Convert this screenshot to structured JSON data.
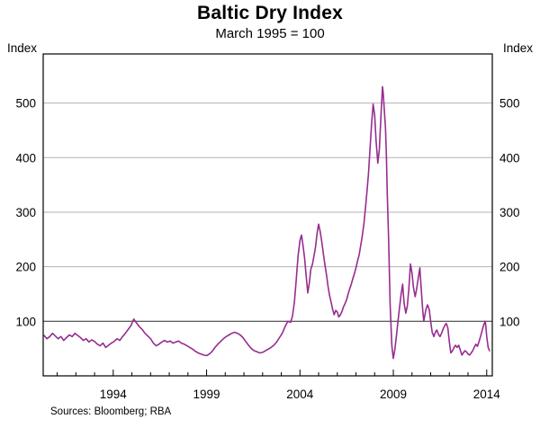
{
  "header": {
    "title": "Baltic Dry Index",
    "subtitle": "March 1995 = 100"
  },
  "axes": {
    "left_unit": "Index",
    "right_unit": "Index"
  },
  "footer": {
    "source": "Sources: Bloomberg; RBA"
  },
  "chart_data": {
    "type": "line",
    "title": "Baltic Dry Index",
    "subtitle": "March 1995 = 100",
    "ylabel": "Index",
    "xlabel": "",
    "xlim": [
      1990.25,
      2014.3
    ],
    "ylim": [
      0,
      590
    ],
    "yticks": [
      100,
      200,
      300,
      400,
      500
    ],
    "xticks": [
      1994,
      1999,
      2004,
      2009,
      2014
    ],
    "baseline": 100,
    "grid": true,
    "legend": "none",
    "line_color": "#962d8f",
    "grid_color": "#b3b3b3",
    "baseline_color": "#4d4d4d",
    "frame_color": "#000000",
    "series": [
      {
        "name": "Baltic Dry Index",
        "points": [
          [
            1990.3,
            74
          ],
          [
            1990.45,
            68
          ],
          [
            1990.6,
            72
          ],
          [
            1990.75,
            78
          ],
          [
            1990.9,
            73
          ],
          [
            1991.05,
            68
          ],
          [
            1991.2,
            72
          ],
          [
            1991.35,
            65
          ],
          [
            1991.5,
            70
          ],
          [
            1991.65,
            75
          ],
          [
            1991.8,
            72
          ],
          [
            1991.95,
            78
          ],
          [
            1992.1,
            74
          ],
          [
            1992.25,
            70
          ],
          [
            1992.4,
            65
          ],
          [
            1992.55,
            68
          ],
          [
            1992.7,
            62
          ],
          [
            1992.85,
            66
          ],
          [
            1993.0,
            63
          ],
          [
            1993.15,
            58
          ],
          [
            1993.3,
            55
          ],
          [
            1993.45,
            60
          ],
          [
            1993.6,
            52
          ],
          [
            1993.75,
            56
          ],
          [
            1993.9,
            60
          ],
          [
            1994.05,
            63
          ],
          [
            1994.2,
            68
          ],
          [
            1994.35,
            65
          ],
          [
            1994.5,
            72
          ],
          [
            1994.65,
            78
          ],
          [
            1994.8,
            85
          ],
          [
            1994.95,
            92
          ],
          [
            1995.1,
            104
          ],
          [
            1995.25,
            97
          ],
          [
            1995.4,
            90
          ],
          [
            1995.55,
            85
          ],
          [
            1995.7,
            78
          ],
          [
            1995.85,
            73
          ],
          [
            1996.0,
            68
          ],
          [
            1996.15,
            60
          ],
          [
            1996.3,
            55
          ],
          [
            1996.45,
            58
          ],
          [
            1996.6,
            62
          ],
          [
            1996.75,
            65
          ],
          [
            1996.9,
            62
          ],
          [
            1997.05,
            64
          ],
          [
            1997.2,
            60
          ],
          [
            1997.35,
            62
          ],
          [
            1997.5,
            64
          ],
          [
            1997.65,
            60
          ],
          [
            1997.8,
            58
          ],
          [
            1997.95,
            55
          ],
          [
            1998.1,
            52
          ],
          [
            1998.25,
            49
          ],
          [
            1998.4,
            45
          ],
          [
            1998.55,
            42
          ],
          [
            1998.7,
            40
          ],
          [
            1998.85,
            38
          ],
          [
            1999.0,
            37
          ],
          [
            1999.15,
            40
          ],
          [
            1999.3,
            45
          ],
          [
            1999.45,
            52
          ],
          [
            1999.6,
            58
          ],
          [
            1999.75,
            63
          ],
          [
            1999.9,
            68
          ],
          [
            2000.05,
            72
          ],
          [
            2000.2,
            75
          ],
          [
            2000.35,
            78
          ],
          [
            2000.5,
            80
          ],
          [
            2000.65,
            78
          ],
          [
            2000.8,
            75
          ],
          [
            2000.95,
            70
          ],
          [
            2001.1,
            63
          ],
          [
            2001.25,
            56
          ],
          [
            2001.4,
            50
          ],
          [
            2001.55,
            46
          ],
          [
            2001.7,
            44
          ],
          [
            2001.85,
            42
          ],
          [
            2002.0,
            43
          ],
          [
            2002.15,
            46
          ],
          [
            2002.3,
            49
          ],
          [
            2002.45,
            52
          ],
          [
            2002.6,
            56
          ],
          [
            2002.75,
            62
          ],
          [
            2002.9,
            70
          ],
          [
            2003.05,
            78
          ],
          [
            2003.2,
            90
          ],
          [
            2003.35,
            100
          ],
          [
            2003.5,
            98
          ],
          [
            2003.6,
            110
          ],
          [
            2003.7,
            135
          ],
          [
            2003.8,
            175
          ],
          [
            2003.9,
            220
          ],
          [
            2004.0,
            248
          ],
          [
            2004.08,
            258
          ],
          [
            2004.16,
            240
          ],
          [
            2004.25,
            215
          ],
          [
            2004.33,
            185
          ],
          [
            2004.42,
            152
          ],
          [
            2004.5,
            170
          ],
          [
            2004.58,
            195
          ],
          [
            2004.67,
            205
          ],
          [
            2004.75,
            220
          ],
          [
            2004.83,
            235
          ],
          [
            2004.92,
            262
          ],
          [
            2005.0,
            278
          ],
          [
            2005.08,
            265
          ],
          [
            2005.17,
            245
          ],
          [
            2005.25,
            225
          ],
          [
            2005.33,
            205
          ],
          [
            2005.42,
            185
          ],
          [
            2005.5,
            165
          ],
          [
            2005.58,
            148
          ],
          [
            2005.67,
            135
          ],
          [
            2005.75,
            122
          ],
          [
            2005.83,
            112
          ],
          [
            2005.92,
            120
          ],
          [
            2006.0,
            117
          ],
          [
            2006.08,
            108
          ],
          [
            2006.17,
            112
          ],
          [
            2006.25,
            118
          ],
          [
            2006.33,
            126
          ],
          [
            2006.42,
            133
          ],
          [
            2006.5,
            140
          ],
          [
            2006.58,
            150
          ],
          [
            2006.67,
            160
          ],
          [
            2006.75,
            168
          ],
          [
            2006.83,
            178
          ],
          [
            2006.92,
            188
          ],
          [
            2007.0,
            198
          ],
          [
            2007.08,
            210
          ],
          [
            2007.17,
            222
          ],
          [
            2007.25,
            238
          ],
          [
            2007.33,
            255
          ],
          [
            2007.42,
            278
          ],
          [
            2007.5,
            305
          ],
          [
            2007.58,
            335
          ],
          [
            2007.67,
            370
          ],
          [
            2007.75,
            415
          ],
          [
            2007.83,
            460
          ],
          [
            2007.92,
            498
          ],
          [
            2008.0,
            478
          ],
          [
            2008.08,
            430
          ],
          [
            2008.17,
            390
          ],
          [
            2008.25,
            415
          ],
          [
            2008.33,
            470
          ],
          [
            2008.42,
            530
          ],
          [
            2008.46,
            518
          ],
          [
            2008.5,
            495
          ],
          [
            2008.58,
            455
          ],
          [
            2008.63,
            400
          ],
          [
            2008.67,
            340
          ],
          [
            2008.75,
            250
          ],
          [
            2008.83,
            130
          ],
          [
            2008.92,
            55
          ],
          [
            2009.0,
            32
          ],
          [
            2009.08,
            48
          ],
          [
            2009.17,
            75
          ],
          [
            2009.25,
            100
          ],
          [
            2009.33,
            125
          ],
          [
            2009.42,
            150
          ],
          [
            2009.5,
            168
          ],
          [
            2009.54,
            150
          ],
          [
            2009.58,
            132
          ],
          [
            2009.67,
            115
          ],
          [
            2009.75,
            128
          ],
          [
            2009.83,
            160
          ],
          [
            2009.92,
            205
          ],
          [
            2010.0,
            188
          ],
          [
            2010.08,
            162
          ],
          [
            2010.17,
            145
          ],
          [
            2010.25,
            160
          ],
          [
            2010.33,
            178
          ],
          [
            2010.42,
            198
          ],
          [
            2010.5,
            155
          ],
          [
            2010.58,
            118
          ],
          [
            2010.63,
            100
          ],
          [
            2010.67,
            108
          ],
          [
            2010.75,
            122
          ],
          [
            2010.83,
            130
          ],
          [
            2010.92,
            122
          ],
          [
            2011.0,
            100
          ],
          [
            2011.08,
            80
          ],
          [
            2011.17,
            72
          ],
          [
            2011.25,
            80
          ],
          [
            2011.33,
            84
          ],
          [
            2011.42,
            76
          ],
          [
            2011.5,
            72
          ],
          [
            2011.58,
            78
          ],
          [
            2011.67,
            86
          ],
          [
            2011.75,
            92
          ],
          [
            2011.83,
            96
          ],
          [
            2011.92,
            88
          ],
          [
            2012.0,
            62
          ],
          [
            2012.08,
            42
          ],
          [
            2012.17,
            46
          ],
          [
            2012.25,
            52
          ],
          [
            2012.33,
            56
          ],
          [
            2012.42,
            52
          ],
          [
            2012.5,
            56
          ],
          [
            2012.58,
            48
          ],
          [
            2012.67,
            38
          ],
          [
            2012.75,
            42
          ],
          [
            2012.83,
            46
          ],
          [
            2012.92,
            44
          ],
          [
            2013.0,
            40
          ],
          [
            2013.08,
            38
          ],
          [
            2013.17,
            42
          ],
          [
            2013.25,
            46
          ],
          [
            2013.33,
            52
          ],
          [
            2013.42,
            58
          ],
          [
            2013.5,
            54
          ],
          [
            2013.58,
            62
          ],
          [
            2013.67,
            72
          ],
          [
            2013.75,
            82
          ],
          [
            2013.83,
            92
          ],
          [
            2013.92,
            100
          ],
          [
            2013.96,
            90
          ],
          [
            2014.0,
            72
          ],
          [
            2014.08,
            52
          ],
          [
            2014.15,
            46
          ]
        ]
      }
    ]
  }
}
